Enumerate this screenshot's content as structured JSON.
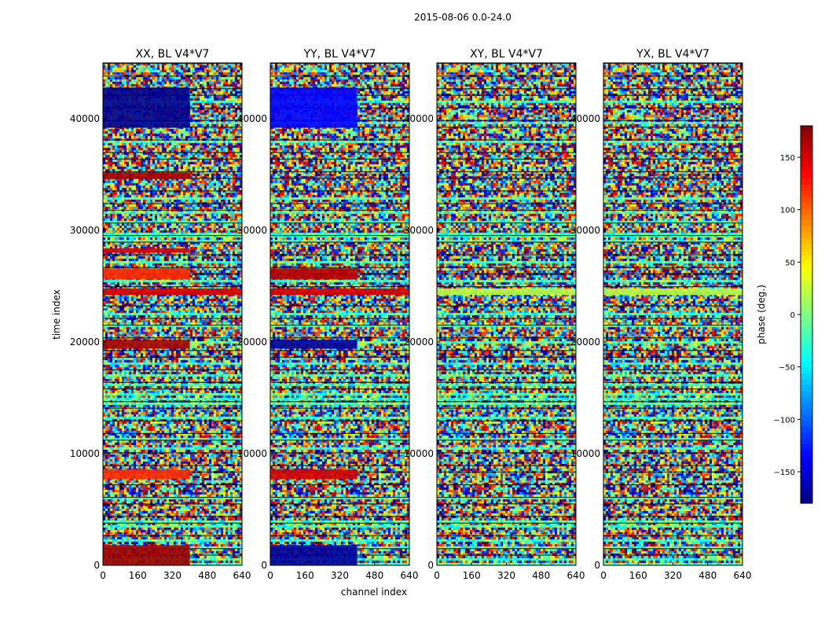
{
  "figure": {
    "suptitle": "2015-08-06 0.0-24.0",
    "xlabel": "channel index",
    "ylabel": "time index"
  },
  "chart_data": {
    "type": "heatmap",
    "title": "2015-08-06 0.0-24.0",
    "xlabel": "channel index",
    "ylabel": "time index",
    "xlim": [
      0,
      640
    ],
    "ylim": [
      0,
      45000
    ],
    "x_ticks": [
      "0",
      "160",
      "320",
      "480",
      "640"
    ],
    "y_ticks": [
      "0",
      "10000",
      "20000",
      "30000",
      "40000"
    ],
    "y_tick_values": [
      0,
      10000,
      20000,
      30000,
      40000
    ],
    "panels": [
      {
        "title": "XX, BL V4*V7",
        "bands": [
          {
            "t0": 0,
            "t1": 1800,
            "c0": 0,
            "c1": 400,
            "phase": 170
          },
          {
            "t0": 7700,
            "t1": 8600,
            "c0": 0,
            "c1": 400,
            "phase": 120
          },
          {
            "t0": 19400,
            "t1": 20200,
            "c0": 0,
            "c1": 400,
            "phase": 165
          },
          {
            "t0": 24200,
            "t1": 24800,
            "c0": 0,
            "c1": 640,
            "phase": 150
          },
          {
            "t0": 25600,
            "t1": 26600,
            "c0": 0,
            "c1": 400,
            "phase": 120
          },
          {
            "t0": 28000,
            "t1": 28400,
            "c0": 0,
            "c1": 400,
            "phase": 150
          },
          {
            "t0": 34600,
            "t1": 35200,
            "c0": 0,
            "c1": 400,
            "phase": 165
          },
          {
            "t0": 39200,
            "t1": 42800,
            "c0": 0,
            "c1": 400,
            "phase": -175
          }
        ]
      },
      {
        "title": "YY, BL V4*V7",
        "bands": [
          {
            "t0": 0,
            "t1": 1800,
            "c0": 0,
            "c1": 400,
            "phase": -170
          },
          {
            "t0": 7700,
            "t1": 8600,
            "c0": 0,
            "c1": 400,
            "phase": 150
          },
          {
            "t0": 19400,
            "t1": 20200,
            "c0": 0,
            "c1": 400,
            "phase": -170
          },
          {
            "t0": 24200,
            "t1": 24800,
            "c0": 0,
            "c1": 640,
            "phase": 150
          },
          {
            "t0": 25600,
            "t1": 26600,
            "c0": 0,
            "c1": 400,
            "phase": 160
          },
          {
            "t0": 39200,
            "t1": 42800,
            "c0": 0,
            "c1": 400,
            "phase": -135
          }
        ]
      },
      {
        "title": "XY, BL V4*V7",
        "bands": [
          {
            "t0": 24200,
            "t1": 24800,
            "c0": 0,
            "c1": 640,
            "phase": 20
          }
        ]
      },
      {
        "title": "YX, BL V4*V7",
        "bands": [
          {
            "t0": 24200,
            "t1": 24800,
            "c0": 0,
            "c1": 640,
            "phase": 20
          }
        ]
      }
    ],
    "colorbar": {
      "label": "phase (deg.)",
      "range": [
        -180,
        180
      ],
      "ticks": [
        "150",
        "100",
        "50",
        "0",
        "−50",
        "−100",
        "−150"
      ],
      "tick_values": [
        150,
        100,
        50,
        0,
        -50,
        -100,
        -150
      ],
      "colormap": "jet"
    }
  }
}
